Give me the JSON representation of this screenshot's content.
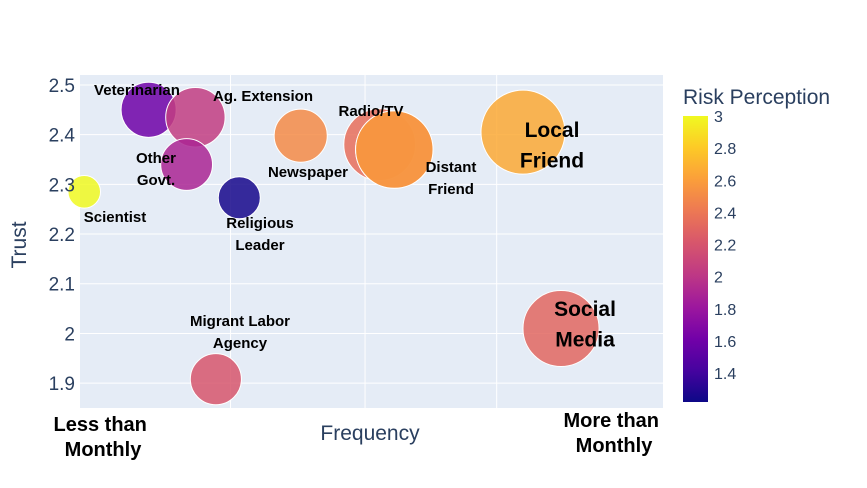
{
  "chart_data": {
    "type": "scatter",
    "title": "",
    "xlabel": "Frequency",
    "ylabel": "Trust",
    "x_endpoint_labels": {
      "left": [
        "Less than",
        "Monthly"
      ],
      "right": [
        "More than",
        "Monthly"
      ]
    },
    "xlim": [
      0,
      1
    ],
    "ylim": [
      1.85,
      2.52
    ],
    "yticks": [
      "1.9",
      "2",
      "2.1",
      "2.2",
      "2.3",
      "2.4",
      "2.5"
    ],
    "grid": true,
    "colorbar": {
      "title": "Risk Perception",
      "range": [
        1.22,
        3.0
      ],
      "ticks": [
        "1.4",
        "1.6",
        "1.8",
        "2",
        "2.2",
        "2.4",
        "2.6",
        "2.8",
        "3"
      ]
    },
    "points": [
      {
        "label": [
          "Veterinarian"
        ],
        "x": 0.16,
        "y": 2.45,
        "size": 0.43,
        "color": 1.6
      },
      {
        "label": [
          "Ag. Extension"
        ],
        "x": 0.24,
        "y": 2.435,
        "size": 0.5,
        "color": 2.05
      },
      {
        "label": [
          "Other",
          "Govt."
        ],
        "x": 0.225,
        "y": 2.34,
        "size": 0.38,
        "color": 1.9
      },
      {
        "label": [
          "Scientist"
        ],
        "x": 0.05,
        "y": 2.285,
        "size": 0.15,
        "color": 3.0
      },
      {
        "label": [
          "Religious",
          "Leader"
        ],
        "x": 0.315,
        "y": 2.273,
        "size": 0.25,
        "color": 1.25
      },
      {
        "label": [
          "Newspaper"
        ],
        "x": 0.42,
        "y": 2.398,
        "size": 0.4,
        "color": 2.5
      },
      {
        "label": [],
        "x": 0.555,
        "y": 2.38,
        "size": 0.73,
        "color": 2.35
      },
      {
        "label": [
          "Radio/TV"
        ],
        "x": 0.58,
        "y": 2.37,
        "size": 0.85,
        "color": 2.55
      },
      {
        "label": [
          "Distant",
          "Friend"
        ],
        "x": 0.58,
        "y": 2.37,
        "size": 0.85,
        "color": 2.55
      },
      {
        "label": [
          "Local",
          "Friend"
        ],
        "x": 0.8,
        "y": 2.405,
        "size": 1.0,
        "color": 2.65
      },
      {
        "label": [
          "Social",
          "Media"
        ],
        "x": 0.865,
        "y": 2.01,
        "size": 0.82,
        "color": 2.3
      },
      {
        "label": [
          "Migrant Labor",
          "Agency"
        ],
        "x": 0.275,
        "y": 1.908,
        "size": 0.37,
        "color": 2.2
      }
    ]
  }
}
